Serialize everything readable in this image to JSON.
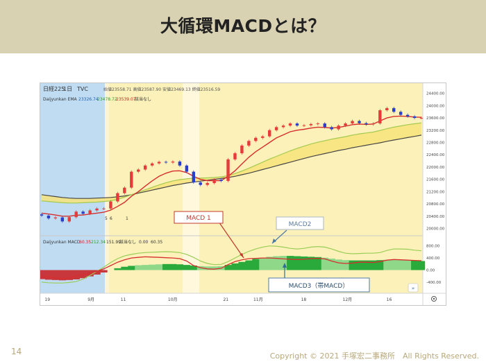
{
  "slide": {
    "title": "大循環MACDとは？",
    "page_number": "14",
    "copyright": "Copyright © 2021 手塚宏二事務所　All Rights Reserved."
  },
  "chart_header": {
    "symbol": "日経225",
    "interval": "1日",
    "source": "TVC",
    "ohlc": "始値23558.71 高値23587.90 安値23469.13 終値23516.59",
    "ema_label": "Daijyunkan EMA",
    "ema_v1": "23326.74",
    "ema_v2": "23478.72",
    "ema_v3": "23539.07",
    "ema_note": "該当なし",
    "macd_label": "Daijyunkan MACD",
    "macd_v1": "60.35",
    "macd_v2": "212.34",
    "macd_v3": "151.99",
    "macd_note": "該当なし",
    "macd_v4": "0.00",
    "macd_v5": "60.35"
  },
  "annotations": {
    "macd1": "MACD 1",
    "macd2": "MACD2",
    "macd3": "MACD3（帯MACD）",
    "marker_5": "5",
    "marker_6": "6",
    "marker_1": "1"
  },
  "chart_data": [
    {
      "type": "line",
      "title": "",
      "price_axis_ticks": [
        "24400.00",
        "24000.00",
        "23600.00",
        "23200.00",
        "22800.00",
        "22400.00",
        "22000.00",
        "21600.00",
        "21200.00",
        "20800.00",
        "20400.00",
        "20000.00"
      ],
      "ylim": [
        19900,
        24550
      ],
      "x_ticks": [
        "19",
        "9月",
        "11",
        "10月",
        "21",
        "11月",
        "18",
        "12月",
        "16"
      ],
      "series": [
        {
          "name": "",
          "values": [
            20420,
            20330,
            20360,
            20230,
            20370,
            20550,
            20480,
            20590,
            20650,
            20650,
            20880,
            21150,
            21330,
            21850,
            21920,
            22050,
            22120,
            22170,
            22150,
            22180,
            22050,
            21850,
            21500,
            21420,
            21480,
            21590,
            21550,
            22250,
            22450,
            22700,
            22850,
            22950,
            23000,
            23200,
            23300,
            23350,
            23420,
            23350,
            23360,
            23400,
            23420,
            23300,
            23230,
            23350,
            23420,
            23500,
            23430,
            23390,
            23420,
            23850,
            23920,
            23800,
            23700,
            23650,
            23600,
            23600
          ]
        },
        {
          "name": "",
          "values": [
            20500,
            20470,
            20440,
            20400,
            20400,
            20430,
            20440,
            20470,
            20500,
            20530,
            20600,
            20720,
            20850,
            21050,
            21200,
            21380,
            21550,
            21700,
            21800,
            21870,
            21880,
            21820,
            21700,
            21600,
            21560,
            21560,
            21560,
            21700,
            21880,
            22100,
            22320,
            22500,
            22650,
            22800,
            22950,
            23050,
            23150,
            23200,
            23230,
            23270,
            23300,
            23290,
            23270,
            23290,
            23330,
            23380,
            23400,
            23390,
            23400,
            23500,
            23600,
            23650,
            23660,
            23650,
            23630,
            23620
          ]
        },
        {
          "name": "",
          "values": [
            20900,
            20880,
            20860,
            20840,
            20830,
            20830,
            20840,
            20850,
            20860,
            20880,
            20900,
            20950,
            21020,
            21100,
            21180,
            21260,
            21340,
            21420,
            21490,
            21550,
            21590,
            21620,
            21640,
            21640,
            21650,
            21660,
            21680,
            21720,
            21790,
            21870,
            21960,
            22060,
            22160,
            22260,
            22350,
            22440,
            22530,
            22610,
            22680,
            22750,
            22810,
            22860,
            22910,
            22950,
            22990,
            23040,
            23080,
            23110,
            23140,
            23190,
            23250,
            23300,
            23340,
            23380,
            23410,
            23440
          ]
        },
        {
          "name": "",
          "values": [
            21100,
            21070,
            21040,
            21010,
            20990,
            20980,
            20980,
            20980,
            20990,
            21000,
            21010,
            21030,
            21060,
            21100,
            21150,
            21200,
            21250,
            21300,
            21350,
            21400,
            21440,
            21480,
            21510,
            21540,
            21570,
            21600,
            21630,
            21660,
            21700,
            21750,
            21800,
            21860,
            21920,
            21980,
            22040,
            22100,
            22160,
            22220,
            22280,
            22340,
            22390,
            22440,
            22490,
            22540,
            22580,
            22630,
            22670,
            22710,
            22750,
            22790,
            22840,
            22880,
            22920,
            22960,
            23000,
            23040
          ]
        }
      ]
    },
    {
      "type": "line",
      "title": "",
      "macd_axis_ticks": [
        "800.00",
        "400.00",
        "0.00",
        "-400.00"
      ],
      "ylim": [
        -700,
        1000
      ],
      "series": [
        {
          "name": "MACD 1",
          "values": [
            -200,
            -230,
            -260,
            -280,
            -260,
            -200,
            -150,
            -100,
            -40,
            40,
            150,
            260,
            340,
            400,
            420,
            440,
            430,
            420,
            410,
            400,
            380,
            300,
            150,
            80,
            40,
            30,
            60,
            180,
            280,
            340,
            380,
            390,
            400,
            400,
            390,
            370,
            360,
            350,
            360,
            380,
            390,
            370,
            300,
            240,
            220,
            230,
            260,
            260,
            250,
            280,
            330,
            350,
            340,
            330,
            320,
            310
          ]
        },
        {
          "name": "MACD2",
          "values": [
            -400,
            -420,
            -430,
            -430,
            -410,
            -380,
            -300,
            -180,
            -40,
            100,
            250,
            380,
            470,
            520,
            560,
            580,
            590,
            600,
            610,
            600,
            580,
            520,
            420,
            300,
            220,
            180,
            190,
            280,
            400,
            520,
            620,
            700,
            760,
            800,
            790,
            760,
            720,
            700,
            720,
            760,
            780,
            760,
            700,
            620,
            560,
            540,
            550,
            560,
            560,
            580,
            650,
            700,
            700,
            690,
            660,
            640
          ]
        },
        {
          "name": "MACD3（帯MACD）",
          "values": [
            -300,
            -320,
            -330,
            -340,
            -330,
            -310,
            -270,
            -210,
            -150,
            -80,
            0,
            60,
            110,
            140,
            160,
            170,
            180,
            190,
            200,
            200,
            190,
            170,
            150,
            130,
            120,
            120,
            130,
            170,
            220,
            270,
            320,
            370,
            410,
            440,
            460,
            470,
            470,
            460,
            450,
            440,
            430,
            410,
            380,
            350,
            330,
            320,
            320,
            320,
            320,
            330,
            340,
            350,
            340,
            330,
            320,
            300
          ]
        }
      ]
    }
  ]
}
